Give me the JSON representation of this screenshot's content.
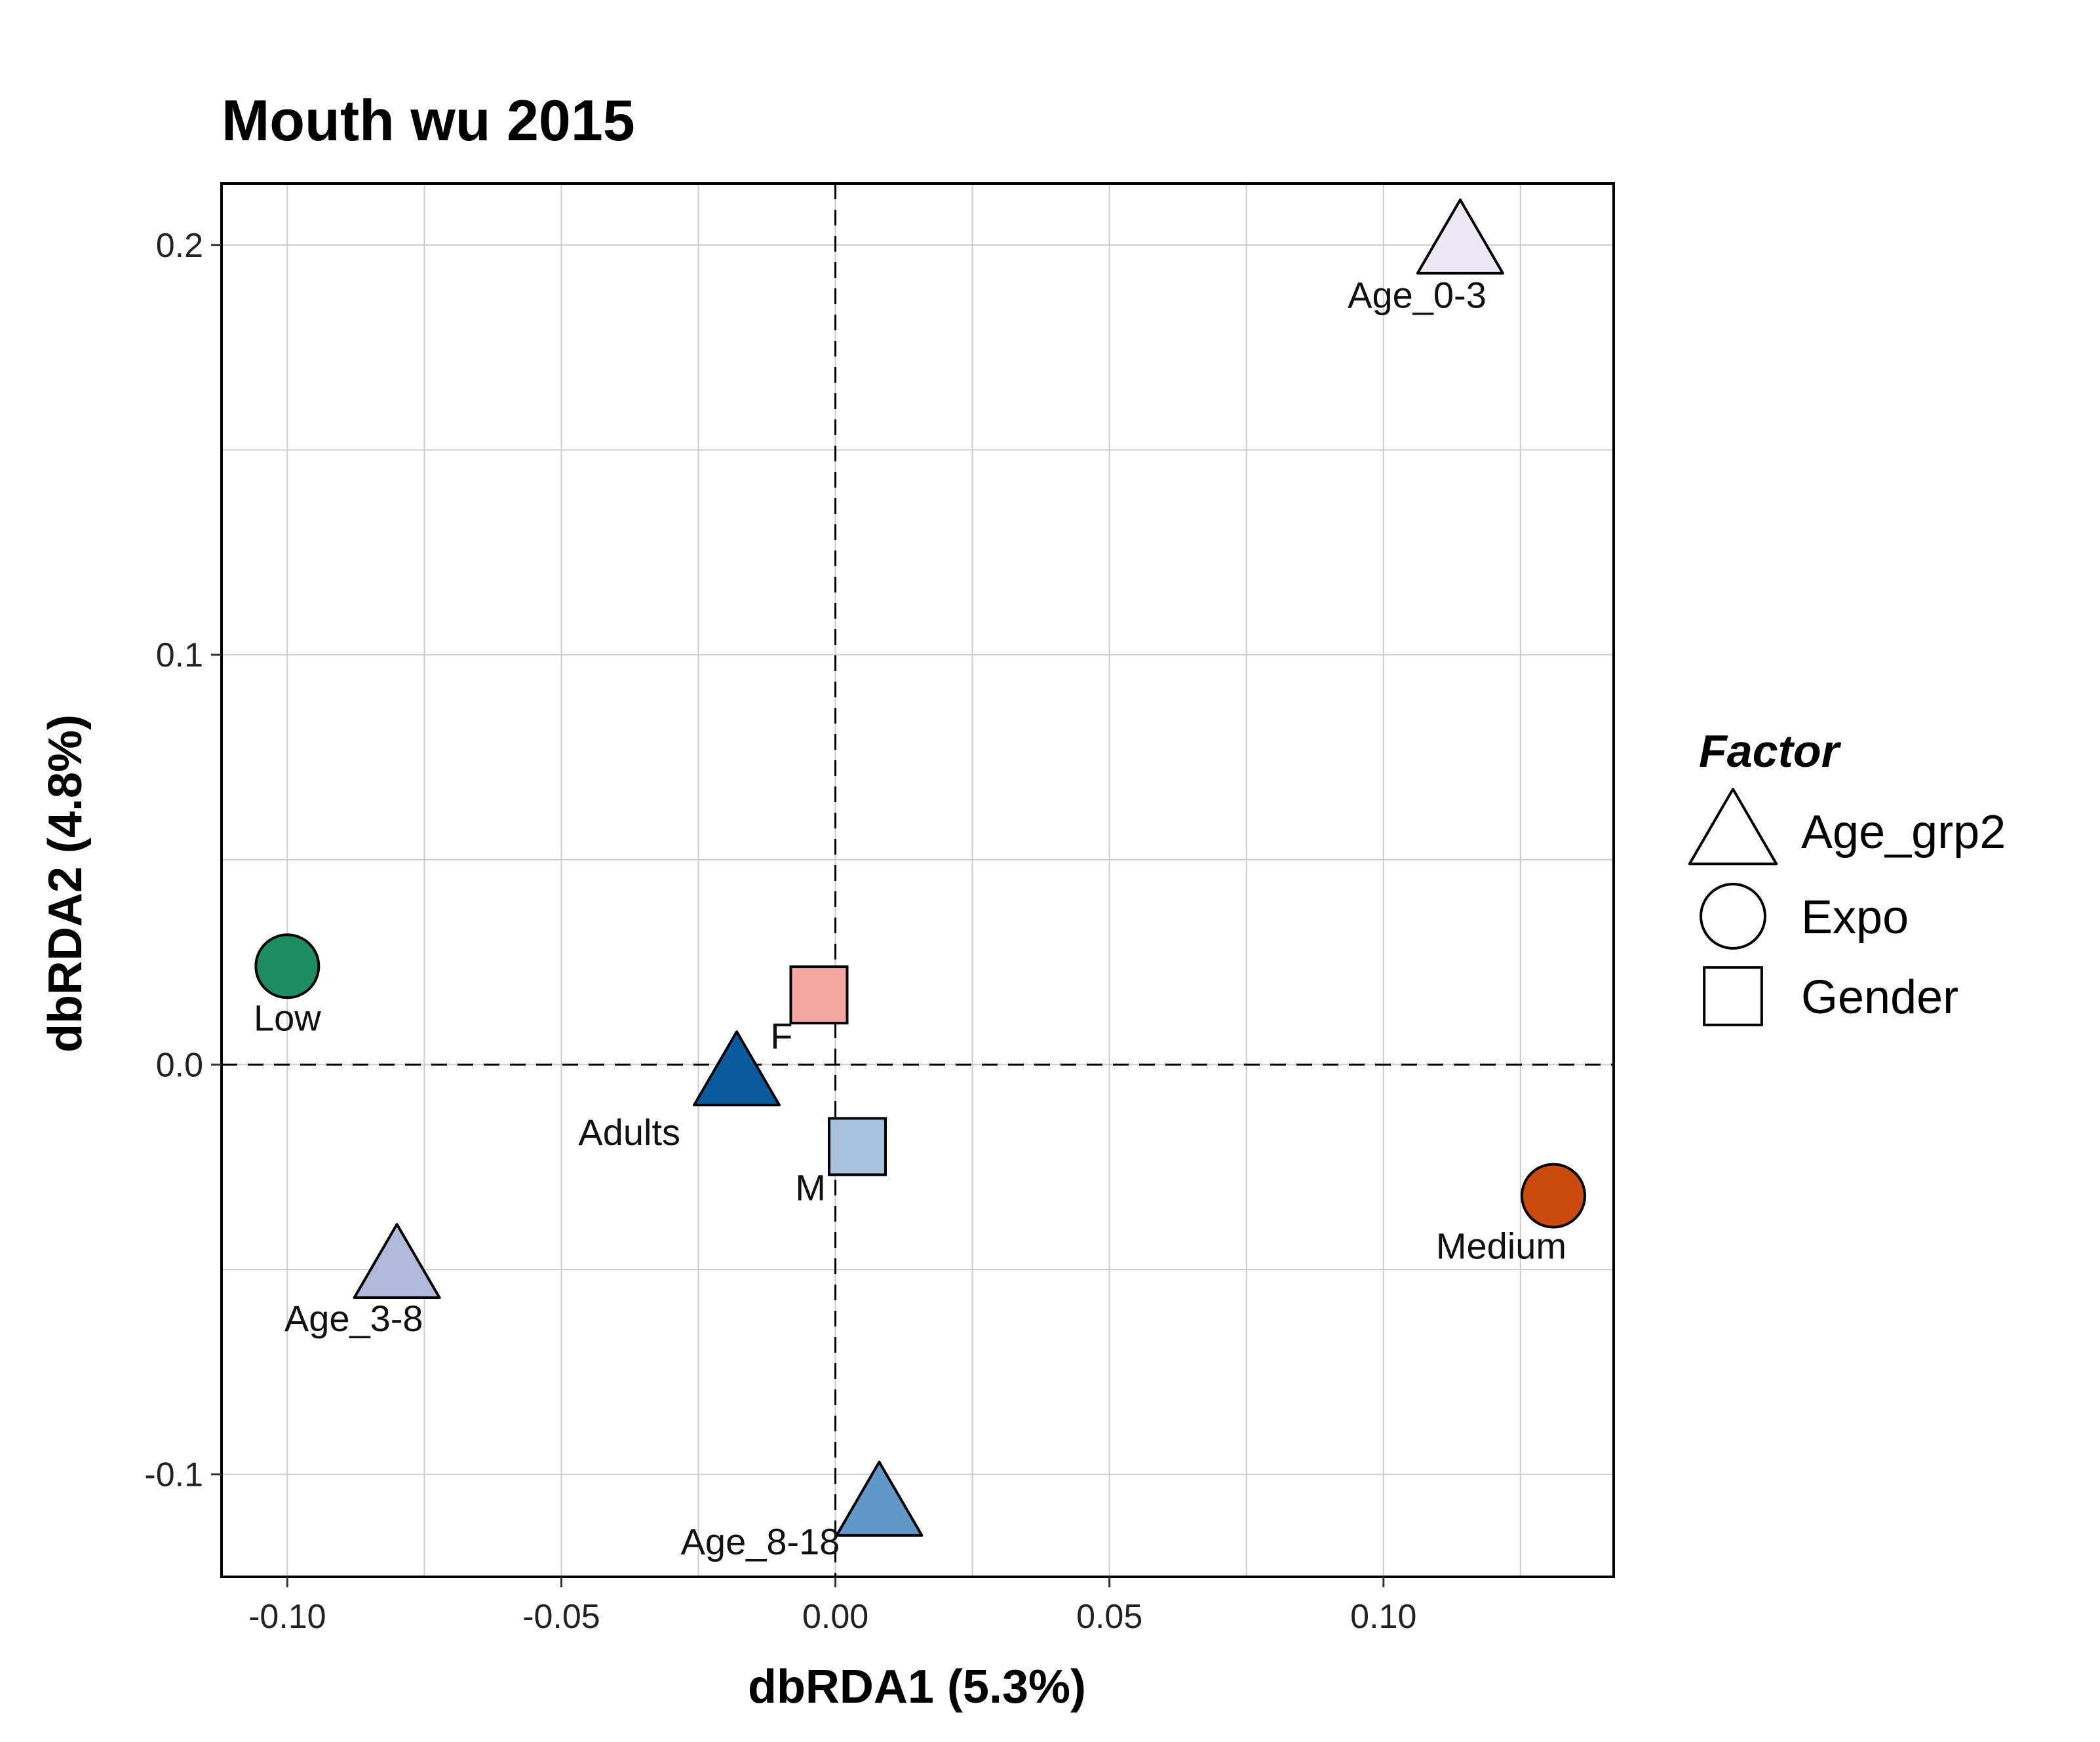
{
  "chart_data": {
    "type": "scatter",
    "title": "Mouth wu 2015",
    "xlabel": "dbRDA1 (5.3%)",
    "ylabel": "dbRDA2 (4.8%)",
    "xlim": [
      -0.112,
      0.142
    ],
    "ylim": [
      -0.125,
      0.215
    ],
    "x_ticks": [
      "-0.10",
      "-0.05",
      "0.00",
      "0.05",
      "0.10"
    ],
    "x_tick_values": [
      -0.1,
      -0.05,
      0.0,
      0.05,
      0.1
    ],
    "y_ticks": [
      "-0.1",
      "0.0",
      "0.1",
      "0.2"
    ],
    "y_tick_values": [
      -0.1,
      0.0,
      0.1,
      0.2
    ],
    "grid": true,
    "reference_lines": {
      "x": 0,
      "y": 0,
      "style": "dashed"
    },
    "legend": {
      "title": "Factor",
      "placement": "right",
      "entries": [
        {
          "label": "Age_grp2",
          "shape": "triangle"
        },
        {
          "label": "Expo",
          "shape": "circle"
        },
        {
          "label": "Gender",
          "shape": "square"
        }
      ]
    },
    "points": [
      {
        "label": "Age_0-3",
        "factor": "Age_grp2",
        "shape": "triangle",
        "x": 0.114,
        "y": 0.201,
        "color": "#ebe8f4",
        "label_pos": "below-left"
      },
      {
        "label": "Age_3-8",
        "factor": "Age_grp2",
        "shape": "triangle",
        "x": -0.08,
        "y": -0.049,
        "color": "#b0b9d8",
        "label_pos": "below-left"
      },
      {
        "label": "Adults",
        "factor": "Age_grp2",
        "shape": "triangle",
        "x": -0.018,
        "y": -0.002,
        "color": "#0b5a9f",
        "label_pos": "below-left"
      },
      {
        "label": "Age_8-18",
        "factor": "Age_grp2",
        "shape": "triangle",
        "x": 0.008,
        "y": -0.107,
        "color": "#6298c9",
        "label_pos": "left"
      },
      {
        "label": "Low",
        "factor": "Expo",
        "shape": "circle",
        "x": -0.1,
        "y": 0.024,
        "color": "#1e8c63",
        "label_pos": "below"
      },
      {
        "label": "Medium",
        "factor": "Expo",
        "shape": "circle",
        "x": 0.131,
        "y": -0.032,
        "color": "#cd4a0d",
        "label_pos": "below-left"
      },
      {
        "label": "F",
        "factor": "Gender",
        "shape": "square",
        "x": -0.003,
        "y": 0.017,
        "color": "#f4a6a1",
        "label_pos": "below-left"
      },
      {
        "label": "M",
        "factor": "Gender",
        "shape": "square",
        "x": 0.004,
        "y": -0.02,
        "color": "#a8c3df",
        "label_pos": "below-left"
      }
    ]
  }
}
